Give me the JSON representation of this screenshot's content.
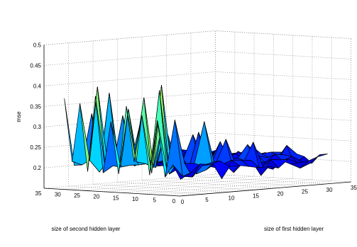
{
  "chart_data": {
    "type": "surface",
    "title": "",
    "xlabel": "size of first hidden layer",
    "ylabel": "size of second hidden layer",
    "zlabel": "mse",
    "xlim": [
      0,
      35
    ],
    "ylim": [
      0,
      35
    ],
    "zlim": [
      0.15,
      0.5
    ],
    "x_ticks": [
      "0",
      "5",
      "10",
      "15",
      "20",
      "25",
      "30",
      "35"
    ],
    "y_ticks": [
      "0",
      "5",
      "10",
      "15",
      "20",
      "25",
      "30",
      "35"
    ],
    "z_ticks": [
      "0.2",
      "0.25",
      "0.3",
      "0.35",
      "0.4",
      "0.45",
      "0.5"
    ],
    "grid": true,
    "colormap": "jet",
    "mesh_edge_color": "#000000",
    "grid_x": [
      1,
      3,
      5,
      7,
      9,
      11,
      13,
      15,
      17,
      19,
      21,
      23,
      25,
      27,
      29,
      31
    ],
    "grid_y": [
      1,
      3,
      5,
      7,
      9,
      11,
      13,
      15,
      17,
      19,
      21,
      23,
      25,
      27,
      29,
      31
    ],
    "baseline_mse": 0.21,
    "peaks": [
      {
        "x": 1,
        "y": 31,
        "mse": 0.37
      },
      {
        "x": 1,
        "y": 27,
        "mse": 0.36
      },
      {
        "x": 1,
        "y": 23,
        "mse": 0.38
      },
      {
        "x": 1,
        "y": 19,
        "mse": 0.32
      },
      {
        "x": 1,
        "y": 15,
        "mse": 0.36
      },
      {
        "x": 1,
        "y": 11,
        "mse": 0.34
      },
      {
        "x": 1,
        "y": 7,
        "mse": 0.33
      },
      {
        "x": 3,
        "y": 25,
        "mse": 0.4
      },
      {
        "x": 3,
        "y": 17,
        "mse": 0.35
      },
      {
        "x": 3,
        "y": 13,
        "mse": 0.38
      },
      {
        "x": 3,
        "y": 9,
        "mse": 0.4
      },
      {
        "x": 3,
        "y": 5,
        "mse": 0.33
      },
      {
        "x": 5,
        "y": 29,
        "mse": 0.33
      },
      {
        "x": 5,
        "y": 21,
        "mse": 0.33
      },
      {
        "x": 5,
        "y": 11,
        "mse": 0.41
      },
      {
        "x": 7,
        "y": 27,
        "mse": 0.38
      },
      {
        "x": 7,
        "y": 19,
        "mse": 0.31
      },
      {
        "x": 7,
        "y": 13,
        "mse": 0.33
      },
      {
        "x": 9,
        "y": 5,
        "mse": 0.32
      },
      {
        "x": 9,
        "y": 15,
        "mse": 0.3
      },
      {
        "x": 11,
        "y": 9,
        "mse": 0.29
      },
      {
        "x": 13,
        "y": 13,
        "mse": 0.28
      },
      {
        "x": 15,
        "y": 7,
        "mse": 0.27
      },
      {
        "x": 17,
        "y": 11,
        "mse": 0.26
      },
      {
        "x": 19,
        "y": 5,
        "mse": 0.26
      },
      {
        "x": 21,
        "y": 9,
        "mse": 0.25
      },
      {
        "x": 25,
        "y": 13,
        "mse": 0.24
      },
      {
        "x": 29,
        "y": 9,
        "mse": 0.24
      }
    ],
    "dips": [
      {
        "x": 5,
        "y": 3,
        "mse": 0.19
      },
      {
        "x": 11,
        "y": 3,
        "mse": 0.18
      },
      {
        "x": 15,
        "y": 5,
        "mse": 0.19
      },
      {
        "x": 19,
        "y": 3,
        "mse": 0.18
      },
      {
        "x": 23,
        "y": 5,
        "mse": 0.19
      },
      {
        "x": 27,
        "y": 3,
        "mse": 0.19
      }
    ]
  }
}
